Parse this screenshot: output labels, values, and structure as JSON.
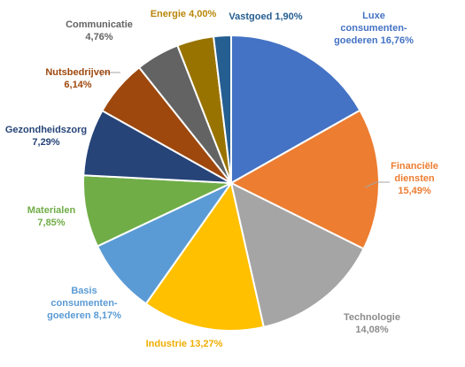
{
  "chart_data": {
    "type": "pie",
    "title": "",
    "slices": [
      {
        "lines": [
          "Luxe",
          "consumenten-",
          "goederen 16,76%"
        ],
        "value": 16.76,
        "color": "#4472C4",
        "label_color": "#4472C4"
      },
      {
        "lines": [
          "Financiële",
          "diensten",
          "15,49%"
        ],
        "value": 15.49,
        "color": "#ED7D31",
        "label_color": "#ED7D31"
      },
      {
        "lines": [
          "Technologie",
          "14,08%"
        ],
        "value": 14.08,
        "color": "#A5A5A5",
        "label_color": "#8C8C8C"
      },
      {
        "lines": [
          "Industrie 13,27%"
        ],
        "value": 13.27,
        "color": "#FFC000",
        "label_color": "#F0AE00"
      },
      {
        "lines": [
          "Basis",
          "consumenten-",
          "goederen 8,17%"
        ],
        "value": 8.17,
        "color": "#5B9BD5",
        "label_color": "#5B9BD5"
      },
      {
        "lines": [
          "Materialen",
          "7,85%"
        ],
        "value": 7.85,
        "color": "#70AD47",
        "label_color": "#70AD47"
      },
      {
        "lines": [
          "Gezondheidszorg",
          "7,29%"
        ],
        "value": 7.29,
        "color": "#264478",
        "label_color": "#264478"
      },
      {
        "lines": [
          "Nutsbedrijven",
          "6,14%"
        ],
        "value": 6.14,
        "color": "#9E480E",
        "label_color": "#9E480E"
      },
      {
        "lines": [
          "Communicatie",
          "4,76%"
        ],
        "value": 4.76,
        "color": "#636363",
        "label_color": "#636363"
      },
      {
        "lines": [
          "Energie 4,00%"
        ],
        "value": 4.0,
        "color": "#997300",
        "label_color": "#B8860B"
      },
      {
        "lines": [
          "Vastgoed 1,90%"
        ],
        "value": 1.9,
        "color": "#255E91",
        "label_color": "#255E91"
      }
    ],
    "legend": "none"
  }
}
